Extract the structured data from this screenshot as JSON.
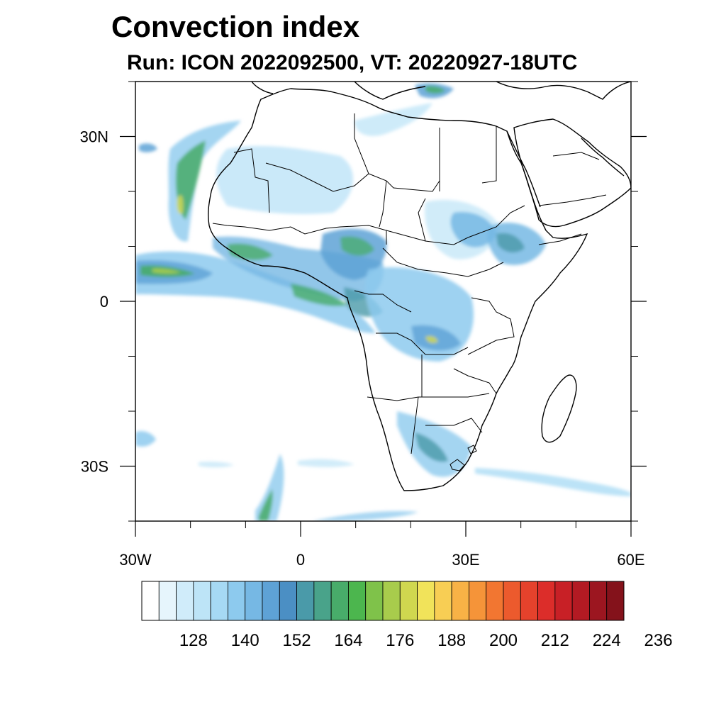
{
  "title": "Convection index",
  "subtitle": "Run: ICON 2022092500,  VT: 20220927-18UTC",
  "map": {
    "projection": "cylindrical-equidistant",
    "lon_range": [
      -30,
      60
    ],
    "lat_range": [
      -40,
      40
    ],
    "lat_ticks": [
      {
        "value": 30,
        "label": "30N"
      },
      {
        "value": 0,
        "label": "0"
      },
      {
        "value": -30,
        "label": "30S"
      }
    ],
    "lon_ticks": [
      {
        "value": -30,
        "label": "30W"
      },
      {
        "value": 0,
        "label": "0"
      },
      {
        "value": 30,
        "label": "30E"
      },
      {
        "value": 60,
        "label": "60E"
      }
    ],
    "features": [
      "coastlines",
      "country-borders",
      "lakes"
    ]
  },
  "colorbar": {
    "colors": [
      "#ffffff",
      "#e6f5fc",
      "#d0ecfa",
      "#bde4f7",
      "#a6d9f4",
      "#8dcaee",
      "#76b8e4",
      "#5ea2d6",
      "#4b8fc4",
      "#4a9aa9",
      "#49a38a",
      "#48ac6a",
      "#4cb64e",
      "#7fc24a",
      "#a8cc4c",
      "#d0d74f",
      "#f1e35a",
      "#f8ce54",
      "#f8b246",
      "#f59439",
      "#f27631",
      "#ec5a2d",
      "#e5422c",
      "#dc2d2a",
      "#c82026",
      "#b31a23",
      "#9c1620",
      "#84121b"
    ],
    "labels": [
      "128",
      "140",
      "152",
      "164",
      "176",
      "188",
      "200",
      "212",
      "224",
      "236"
    ]
  }
}
